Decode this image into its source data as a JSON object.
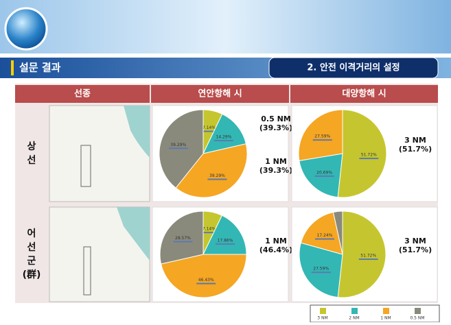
{
  "header": {
    "title": "설문 결과",
    "section": "2. 안전 이격거리의 설정"
  },
  "table": {
    "headers": [
      "선종",
      "연안항해 시",
      "대양항해 시"
    ],
    "rows": [
      {
        "label_lines": [
          "상",
          "선"
        ]
      },
      {
        "label_lines": [
          "어",
          "선",
          "군",
          "(群)"
        ]
      }
    ]
  },
  "legend": {
    "labels": [
      "3 NM",
      "2 NM",
      "1 NM",
      "0.5 NM"
    ],
    "colors": [
      "#c5c62f",
      "#33b7b4",
      "#f5a623",
      "#8a8a7c"
    ]
  },
  "chart_data": [
    {
      "type": "pie",
      "values": [
        7.14,
        14.29,
        39.29,
        39.29
      ],
      "value_labels": [
        "7.14%",
        "14.29%",
        "39.29%",
        "39.29%"
      ],
      "colors": [
        "#c5c62f",
        "#33b7b4",
        "#f5a623",
        "#8a8a7c"
      ],
      "annotations": [
        "0.5 NM (39.3%)",
        "1 NM (39.3%)"
      ]
    },
    {
      "type": "pie",
      "values": [
        51.72,
        20.69,
        27.59
      ],
      "value_labels": [
        "51.72%",
        "20.69%",
        "27.59%"
      ],
      "colors": [
        "#c5c62f",
        "#33b7b4",
        "#f5a623"
      ],
      "annotations": [
        "3 NM (51.7%)"
      ]
    },
    {
      "type": "pie",
      "values": [
        7.14,
        17.86,
        46.43,
        28.57
      ],
      "value_labels": [
        "7.14%",
        "17.86%",
        "46.43%",
        "28.57%"
      ],
      "colors": [
        "#c5c62f",
        "#33b7b4",
        "#f5a623",
        "#8a8a7c"
      ],
      "annotations": [
        "1 NM (46.4%)"
      ]
    },
    {
      "type": "pie",
      "values": [
        51.72,
        27.59,
        17.24,
        3.45
      ],
      "value_labels": [
        "51.72%",
        "27.59%",
        "17.24%",
        null
      ],
      "colors": [
        "#c5c62f",
        "#33b7b4",
        "#f5a623",
        "#8a8a7c"
      ],
      "annotations": [
        "3 NM (51.7%)"
      ]
    }
  ]
}
